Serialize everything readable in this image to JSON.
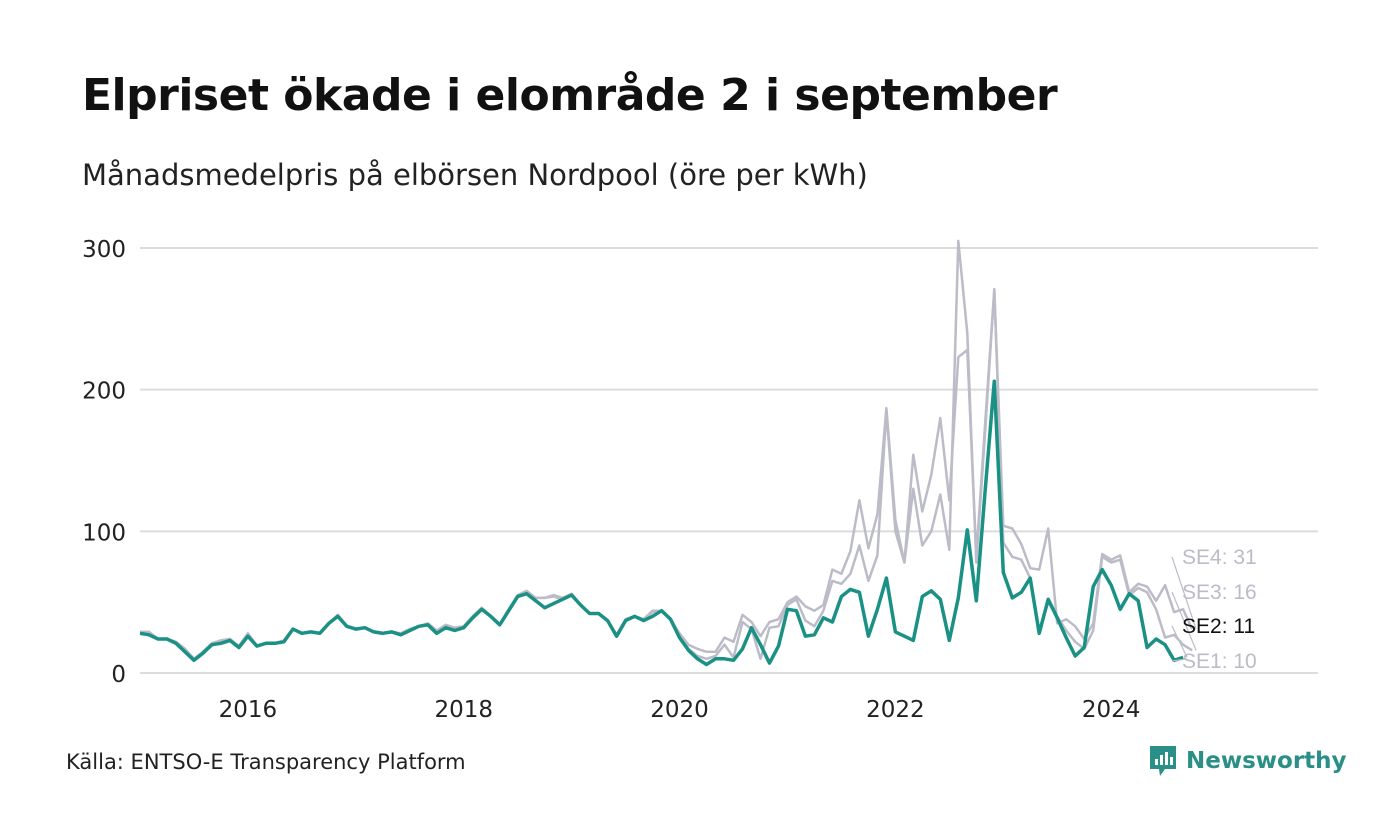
{
  "title": "Elpriset ökade i elområde 2 i september",
  "subtitle": "Månadsmedelpris på elbörsen Nordpool (öre per kWh)",
  "source": "Källa: ENTSO-E Transparency Platform",
  "brand": {
    "name": "Newsworthy",
    "icon": "newsworthy-chart-logo-icon",
    "color": "#2a8f86"
  },
  "colors": {
    "highlight": "#1a9184",
    "context": "#bcbcc8",
    "grid": "#dcdcdc"
  },
  "chart_data": {
    "type": "line",
    "start": "2015-01",
    "xlim": [
      "2015-01",
      "2025-12"
    ],
    "x_ticks": [
      "2016",
      "2018",
      "2020",
      "2022",
      "2024"
    ],
    "ylim": [
      0,
      300
    ],
    "y_ticks": [
      "0",
      "100",
      "200",
      "300"
    ],
    "grid": true,
    "series": [
      {
        "name": "SE4",
        "end_label": "SE4: 31",
        "highlight": false,
        "values": [
          29,
          29,
          24,
          24,
          22,
          17,
          10,
          15,
          21,
          23,
          24,
          19,
          28,
          19,
          21,
          21,
          23,
          31,
          28,
          29,
          28,
          35,
          41,
          33,
          31,
          32,
          29,
          28,
          29,
          28,
          31,
          33,
          35,
          30,
          34,
          32,
          33,
          40,
          46,
          40,
          34,
          45,
          55,
          58,
          53,
          53,
          55,
          53,
          56,
          48,
          42,
          42,
          37,
          27,
          38,
          40,
          38,
          44,
          44,
          38,
          28,
          20,
          17,
          15,
          15,
          25,
          22,
          41,
          36,
          26,
          36,
          38,
          50,
          54,
          47,
          44,
          48,
          73,
          70,
          86,
          122,
          88,
          112,
          187,
          108,
          78,
          154,
          114,
          140,
          180,
          122,
          223,
          228,
          82,
          178,
          270,
          104,
          102,
          91,
          74,
          73,
          102,
          35,
          38,
          33,
          24,
          35,
          84,
          80,
          83,
          57,
          63,
          61,
          51,
          62,
          43,
          45,
          31
        ]
      },
      {
        "name": "SE3",
        "end_label": "SE3: 16",
        "highlight": false,
        "values": [
          29,
          29,
          24,
          24,
          22,
          17,
          10,
          15,
          21,
          23,
          24,
          19,
          28,
          19,
          21,
          21,
          23,
          31,
          28,
          29,
          28,
          35,
          41,
          33,
          31,
          32,
          29,
          28,
          29,
          28,
          31,
          33,
          35,
          30,
          33,
          32,
          33,
          40,
          46,
          40,
          34,
          45,
          55,
          57,
          53,
          53,
          54,
          52,
          55,
          48,
          42,
          42,
          37,
          27,
          38,
          40,
          38,
          43,
          44,
          38,
          27,
          17,
          12,
          10,
          12,
          20,
          11,
          36,
          31,
          10,
          32,
          33,
          48,
          52,
          37,
          33,
          44,
          65,
          63,
          70,
          90,
          65,
          83,
          185,
          100,
          78,
          130,
          90,
          100,
          126,
          87,
          305,
          240,
          78,
          172,
          271,
          92,
          82,
          80,
          67,
          30,
          50,
          40,
          30,
          22,
          17,
          30,
          82,
          78,
          80,
          55,
          60,
          57,
          45,
          25,
          27,
          20,
          16
        ]
      },
      {
        "name": "SE2",
        "end_label": "SE2: 11",
        "highlight": true,
        "values": [
          28,
          27,
          24,
          24,
          21,
          15,
          9,
          14,
          20,
          21,
          23,
          18,
          26,
          19,
          21,
          21,
          22,
          31,
          28,
          29,
          28,
          35,
          40,
          33,
          31,
          32,
          29,
          28,
          29,
          27,
          30,
          33,
          34,
          28,
          32,
          30,
          32,
          39,
          45,
          40,
          34,
          44,
          54,
          56,
          51,
          46,
          49,
          52,
          55,
          48,
          42,
          42,
          37,
          26,
          37,
          40,
          37,
          40,
          44,
          38,
          25,
          16,
          10,
          6,
          10,
          10,
          9,
          17,
          32,
          20,
          7,
          19,
          45,
          44,
          26,
          27,
          39,
          36,
          54,
          59,
          57,
          26,
          45,
          67,
          29,
          26,
          23,
          54,
          58,
          52,
          23,
          53,
          101,
          51,
          130,
          206,
          71,
          53,
          57,
          67,
          28,
          52,
          39,
          25,
          12,
          18,
          61,
          73,
          62,
          45,
          56,
          51,
          18,
          24,
          20,
          9,
          11
        ]
      },
      {
        "name": "SE1",
        "end_label": "SE1: 10",
        "highlight": false,
        "values": [
          28,
          27,
          24,
          24,
          21,
          15,
          9,
          14,
          20,
          21,
          23,
          18,
          26,
          19,
          21,
          21,
          22,
          31,
          28,
          29,
          28,
          35,
          40,
          33,
          31,
          32,
          29,
          28,
          29,
          27,
          30,
          33,
          34,
          28,
          32,
          30,
          32,
          39,
          45,
          40,
          34,
          44,
          54,
          56,
          51,
          46,
          49,
          52,
          55,
          48,
          42,
          42,
          37,
          26,
          37,
          40,
          37,
          40,
          44,
          38,
          25,
          16,
          10,
          6,
          10,
          10,
          9,
          17,
          32,
          20,
          7,
          19,
          45,
          44,
          26,
          27,
          39,
          36,
          54,
          59,
          57,
          26,
          45,
          67,
          29,
          26,
          23,
          54,
          58,
          52,
          23,
          53,
          101,
          51,
          130,
          206,
          71,
          53,
          57,
          67,
          28,
          52,
          39,
          25,
          12,
          18,
          61,
          73,
          62,
          45,
          56,
          51,
          18,
          24,
          20,
          9,
          10
        ]
      }
    ]
  }
}
